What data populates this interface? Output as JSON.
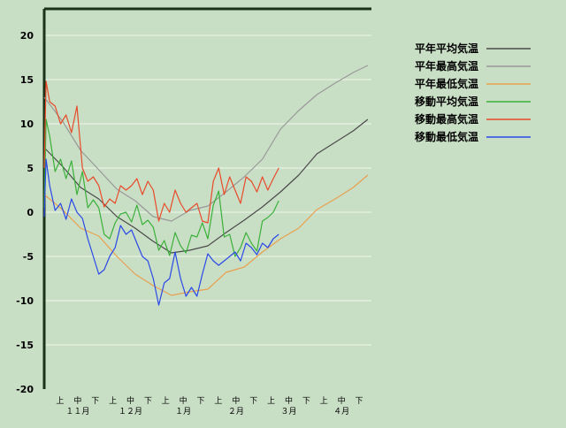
{
  "chart_data": {
    "type": "line",
    "title": "",
    "xlabel": "",
    "ylabel": "",
    "ylim": [
      -20,
      23
    ],
    "yticks": [
      20,
      15,
      10,
      5,
      0,
      -5,
      -10,
      -15,
      -20
    ],
    "grid": "horizontal",
    "legend_position": "right",
    "x_unit": "day index from start of November (0 = Nov 1)",
    "xlim": [
      0,
      180
    ],
    "period_ticks": [
      "上",
      "中",
      "下",
      "上",
      "中",
      "下",
      "上",
      "中",
      "下",
      "上",
      "中",
      "下",
      "上",
      "中",
      "下",
      "上",
      "中",
      "下"
    ],
    "month_labels": [
      "１１月",
      "１２月",
      "１月",
      "２月",
      "３月",
      "４月"
    ],
    "colors": {
      "background": "#c9dfc5",
      "axis": "#1a3319",
      "grid": "#eef5ec",
      "text": "#000000"
    },
    "series": [
      {
        "name": "平年平均気温",
        "color": "#4a4a4a",
        "x": [
          0,
          10,
          20,
          30,
          40,
          50,
          60,
          70,
          80,
          90,
          100,
          110,
          120,
          130,
          140,
          150,
          160,
          170,
          178
        ],
        "y": [
          7.3,
          5.2,
          2.8,
          1.5,
          -0.5,
          -1.8,
          -3.3,
          -4.6,
          -4.3,
          -3.8,
          -2.3,
          -0.9,
          0.6,
          2.3,
          4.2,
          6.6,
          7.9,
          9.2,
          10.5
        ]
      },
      {
        "name": "平年最高気温",
        "color": "#999999",
        "x": [
          0,
          10,
          20,
          30,
          40,
          50,
          60,
          70,
          80,
          90,
          100,
          110,
          120,
          130,
          140,
          150,
          160,
          170,
          178
        ],
        "y": [
          13.0,
          10.3,
          7.0,
          4.8,
          2.6,
          1.3,
          -0.5,
          -1.0,
          0.2,
          0.7,
          2.3,
          4.0,
          6.0,
          9.4,
          11.5,
          13.3,
          14.6,
          15.8,
          16.6
        ]
      },
      {
        "name": "平年最低気温",
        "color": "#e8a050",
        "x": [
          0,
          10,
          20,
          30,
          40,
          50,
          60,
          70,
          80,
          90,
          100,
          110,
          120,
          130,
          140,
          150,
          160,
          170,
          178
        ],
        "y": [
          2.0,
          0.3,
          -1.8,
          -2.7,
          -5.0,
          -7.0,
          -8.3,
          -9.4,
          -9.0,
          -8.7,
          -6.8,
          -6.2,
          -4.5,
          -3.0,
          -1.8,
          0.3,
          1.5,
          2.8,
          4.2
        ]
      },
      {
        "name": "移動平均気温",
        "color": "#3ab03a",
        "x": [
          0,
          1,
          3,
          6,
          9,
          12,
          15,
          18,
          21,
          24,
          27,
          30,
          33,
          36,
          39,
          42,
          45,
          48,
          51,
          54,
          57,
          60,
          63,
          66,
          69,
          72,
          75,
          78,
          81,
          84,
          87,
          90,
          93,
          96,
          99,
          102,
          105,
          108,
          111,
          114,
          117,
          120,
          123,
          126,
          129
        ],
        "y": [
          0.5,
          10.5,
          8.6,
          4.6,
          6.0,
          3.8,
          5.8,
          2.0,
          4.6,
          0.5,
          1.4,
          0.5,
          -2.5,
          -3.0,
          -1.2,
          -0.2,
          0.0,
          -1.1,
          0.8,
          -1.4,
          -0.9,
          -1.7,
          -4.3,
          -3.2,
          -4.9,
          -2.3,
          -3.8,
          -4.6,
          -2.6,
          -2.8,
          -1.2,
          -3.0,
          0.8,
          2.4,
          -2.8,
          -2.5,
          -5.0,
          -4.0,
          -2.3,
          -3.5,
          -4.4,
          -1.0,
          -0.6,
          0.0,
          1.3
        ]
      },
      {
        "name": "移動最高気温",
        "color": "#e84a2a",
        "x": [
          0,
          1,
          3,
          6,
          9,
          12,
          15,
          18,
          21,
          24,
          27,
          30,
          33,
          36,
          39,
          42,
          45,
          48,
          51,
          54,
          57,
          60,
          63,
          66,
          69,
          72,
          75,
          78,
          81,
          84,
          87,
          90,
          93,
          96,
          99,
          102,
          105,
          108,
          111,
          114,
          117,
          120,
          123,
          126,
          129
        ],
        "y": [
          5.0,
          14.8,
          12.5,
          12.0,
          10.0,
          11.0,
          9.0,
          12.0,
          5.0,
          3.5,
          4.0,
          3.0,
          0.6,
          1.5,
          1.0,
          3.0,
          2.5,
          3.0,
          3.8,
          2.0,
          3.5,
          2.5,
          -1.0,
          1.0,
          0.0,
          2.5,
          1.0,
          0.0,
          0.5,
          1.0,
          -1.0,
          -1.2,
          3.5,
          5.0,
          2.0,
          4.0,
          2.5,
          1.0,
          4.0,
          3.5,
          2.3,
          4.0,
          2.5,
          3.8,
          5.0
        ]
      },
      {
        "name": "移動最低気温",
        "color": "#2a48e8",
        "x": [
          0,
          1,
          3,
          6,
          9,
          12,
          15,
          18,
          21,
          24,
          27,
          30,
          33,
          36,
          39,
          42,
          45,
          48,
          51,
          54,
          57,
          60,
          63,
          66,
          69,
          72,
          75,
          78,
          81,
          84,
          87,
          90,
          93,
          96,
          99,
          102,
          105,
          108,
          111,
          114,
          117,
          120,
          123,
          126,
          129
        ],
        "y": [
          -0.5,
          6.0,
          3.0,
          0.2,
          1.0,
          -0.8,
          1.5,
          0.0,
          -0.7,
          -3.0,
          -5.0,
          -7.0,
          -6.5,
          -5.0,
          -4.0,
          -1.5,
          -2.5,
          -2.0,
          -3.5,
          -5.0,
          -5.5,
          -7.5,
          -10.5,
          -8.0,
          -7.5,
          -4.5,
          -7.5,
          -9.5,
          -8.5,
          -9.5,
          -7.0,
          -4.7,
          -5.5,
          -6.0,
          -5.5,
          -5.0,
          -4.5,
          -5.5,
          -3.5,
          -4.0,
          -4.8,
          -3.5,
          -4.0,
          -3.0,
          -2.5
        ]
      }
    ]
  }
}
